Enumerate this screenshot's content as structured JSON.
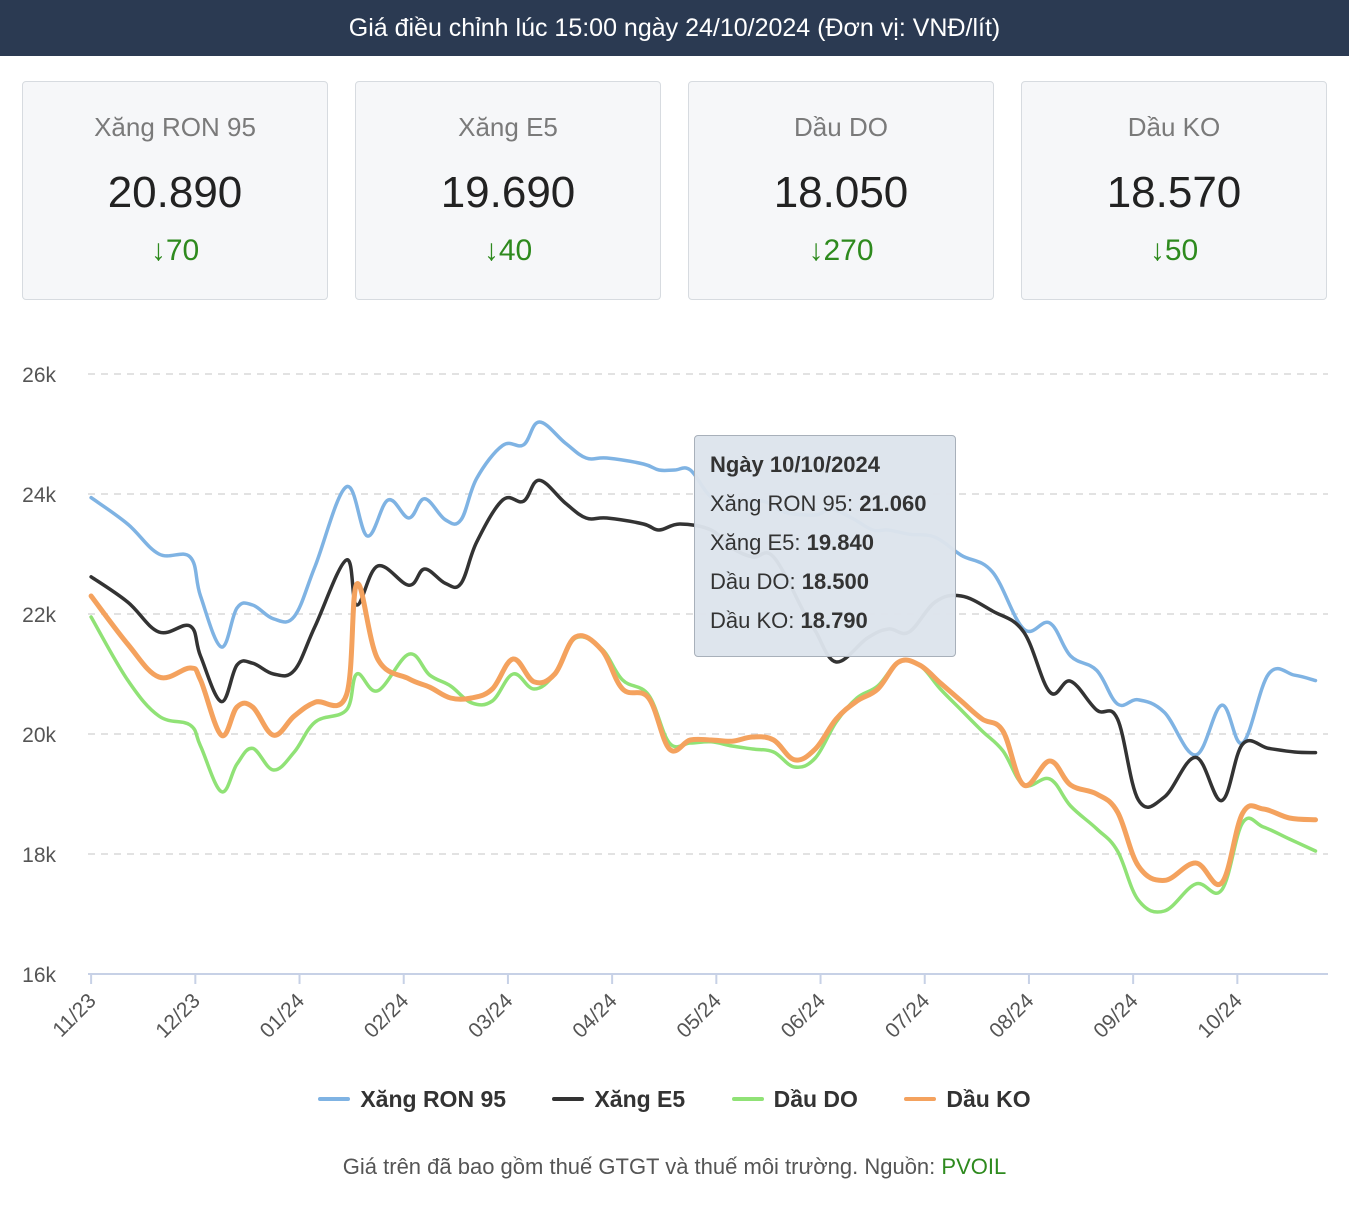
{
  "header": {
    "title": "Giá điều chỉnh lúc 15:00 ngày 24/10/2024 (Đơn vị: VNĐ/lít)"
  },
  "cards": [
    {
      "name": "Xăng RON 95",
      "price": "20.890",
      "change": "70",
      "arrow": "↓"
    },
    {
      "name": "Xăng E5",
      "price": "19.690",
      "change": "40",
      "arrow": "↓"
    },
    {
      "name": "Dầu DO",
      "price": "18.050",
      "change": "270",
      "arrow": "↓"
    },
    {
      "name": "Dầu KO",
      "price": "18.570",
      "change": "50",
      "arrow": "↓"
    }
  ],
  "colors": {
    "ron95": "#7fb3e3",
    "e5": "#333333",
    "do": "#90e276",
    "ko": "#f4a25e",
    "down": "#2e8a1e",
    "header_bg": "#2b3a52"
  },
  "tooltip": {
    "title": "Ngày 10/10/2024",
    "rows": [
      {
        "label": "Xăng RON 95: ",
        "value": "21.060"
      },
      {
        "label": "Xăng E5: ",
        "value": "19.840"
      },
      {
        "label": "Dầu DO: ",
        "value": "18.500"
      },
      {
        "label": "Dầu KO: ",
        "value": "18.790"
      }
    ]
  },
  "footer": {
    "text": "Giá trên đã bao gồm thuế GTGT và thuế môi trường. Nguồn: ",
    "source": "PVOIL"
  },
  "chart_data": {
    "type": "line",
    "ylim": [
      16000,
      26000
    ],
    "y_ticks": [
      16000,
      18000,
      20000,
      22000,
      24000,
      26000
    ],
    "y_tick_labels": [
      "16k",
      "18k",
      "20k",
      "22k",
      "24k",
      "26k"
    ],
    "x_tick_labels": [
      "11/23",
      "12/23",
      "01/24",
      "02/24",
      "03/24",
      "04/24",
      "05/24",
      "06/24",
      "07/24",
      "08/24",
      "09/24",
      "10/24"
    ],
    "x_tick_months": [
      0,
      1,
      2,
      3,
      4,
      5,
      6,
      7,
      8,
      9,
      10,
      11
    ],
    "xlim": [
      -0.03,
      11.87
    ],
    "grid": true,
    "legend_position": "bottom",
    "series": [
      {
        "name": "Xăng RON 95",
        "color": "#7fb3e3",
        "x": [
          0,
          0.35,
          0.65,
          0.95,
          1.05,
          1.25,
          1.4,
          1.55,
          1.75,
          1.95,
          2.15,
          2.45,
          2.65,
          2.85,
          3.05,
          3.2,
          3.4,
          3.55,
          3.7,
          3.95,
          4.15,
          4.3,
          4.55,
          4.75,
          4.95,
          5.3,
          5.45,
          5.6,
          5.75,
          5.95,
          6.15,
          6.45,
          6.65,
          6.95,
          7.1,
          7.3,
          7.5,
          7.65,
          7.85,
          8.1,
          8.35,
          8.65,
          8.95,
          9.2,
          9.4,
          9.65,
          9.85,
          10.05,
          10.3,
          10.6,
          10.85,
          11.05,
          11.3,
          11.55,
          11.75
        ],
        "values": [
          23940,
          23500,
          23000,
          22950,
          22300,
          21450,
          22100,
          22150,
          21920,
          21960,
          22800,
          24120,
          23300,
          23900,
          23600,
          23920,
          23570,
          23570,
          24260,
          24810,
          24820,
          25200,
          24850,
          24600,
          24600,
          24500,
          24400,
          24400,
          24400,
          23950,
          23880,
          23880,
          23700,
          23650,
          23750,
          23600,
          23400,
          23400,
          23330,
          23280,
          22980,
          22700,
          21750,
          21850,
          21300,
          21060,
          20500,
          20570,
          20360,
          19650,
          20480,
          19850,
          21000,
          20980,
          20890
        ]
      },
      {
        "name": "Xăng E5",
        "color": "#333333",
        "x": [
          0,
          0.35,
          0.65,
          0.95,
          1.05,
          1.25,
          1.4,
          1.55,
          1.75,
          1.95,
          2.15,
          2.45,
          2.55,
          2.75,
          3.05,
          3.2,
          3.4,
          3.55,
          3.7,
          3.95,
          4.15,
          4.3,
          4.55,
          4.75,
          4.95,
          5.3,
          5.45,
          5.65,
          5.95,
          6.15,
          6.35,
          6.55,
          6.85,
          6.95,
          7.15,
          7.45,
          7.65,
          7.85,
          8.1,
          8.35,
          8.65,
          8.95,
          9.2,
          9.4,
          9.65,
          9.85,
          10.05,
          10.3,
          10.6,
          10.85,
          11.05,
          11.3,
          11.55,
          11.75
        ],
        "values": [
          22620,
          22200,
          21700,
          21800,
          21300,
          20540,
          21150,
          21180,
          21000,
          21060,
          21800,
          22900,
          22150,
          22800,
          22480,
          22750,
          22510,
          22510,
          23200,
          23900,
          23880,
          24230,
          23850,
          23600,
          23600,
          23500,
          23400,
          23500,
          23400,
          23100,
          22950,
          22950,
          22000,
          21720,
          21200,
          21600,
          21750,
          21700,
          22200,
          22300,
          22050,
          21700,
          20700,
          20880,
          20400,
          20250,
          18900,
          18950,
          19610,
          18890,
          19830,
          19760,
          19700,
          19690
        ]
      },
      {
        "name": "Dầu DO",
        "color": "#90e276",
        "x": [
          0,
          0.35,
          0.65,
          0.95,
          1.05,
          1.25,
          1.4,
          1.55,
          1.75,
          1.95,
          2.15,
          2.45,
          2.55,
          2.75,
          3.05,
          3.25,
          3.45,
          3.65,
          3.85,
          4.05,
          4.25,
          4.45,
          4.65,
          4.9,
          5.1,
          5.35,
          5.55,
          5.75,
          5.95,
          6.15,
          6.35,
          6.55,
          6.75,
          6.95,
          7.15,
          7.35,
          7.55,
          7.75,
          7.95,
          8.15,
          8.35,
          8.55,
          8.75,
          8.95,
          9.2,
          9.4,
          9.65,
          9.85,
          10.05,
          10.3,
          10.6,
          10.85,
          11.05,
          11.25,
          11.5,
          11.75
        ],
        "values": [
          21950,
          20900,
          20300,
          20150,
          19800,
          19040,
          19500,
          19760,
          19400,
          19700,
          20200,
          20400,
          21000,
          20720,
          21330,
          20980,
          20800,
          20520,
          20550,
          21000,
          20750,
          21000,
          21600,
          21420,
          20900,
          20650,
          19850,
          19850,
          19870,
          19800,
          19750,
          19700,
          19450,
          19600,
          20200,
          20600,
          20800,
          21200,
          21150,
          20750,
          20400,
          20050,
          19720,
          19150,
          19250,
          18800,
          18420,
          18050,
          17230,
          17050,
          17500,
          17400,
          18520,
          18450,
          18250,
          18050
        ]
      },
      {
        "name": "Dầu KO",
        "color": "#f4a25e",
        "x": [
          0,
          0.35,
          0.65,
          0.95,
          1.05,
          1.25,
          1.4,
          1.55,
          1.75,
          1.95,
          2.15,
          2.45,
          2.55,
          2.75,
          3.05,
          3.25,
          3.45,
          3.65,
          3.85,
          4.05,
          4.25,
          4.45,
          4.65,
          4.9,
          5.1,
          5.35,
          5.55,
          5.75,
          5.95,
          6.15,
          6.35,
          6.55,
          6.75,
          6.95,
          7.15,
          7.35,
          7.55,
          7.75,
          7.95,
          8.15,
          8.35,
          8.55,
          8.75,
          8.95,
          9.2,
          9.4,
          9.65,
          9.85,
          10.05,
          10.3,
          10.6,
          10.85,
          11.05,
          11.25,
          11.5,
          11.75
        ],
        "values": [
          22300,
          21500,
          20950,
          21100,
          20900,
          19980,
          20450,
          20450,
          19980,
          20300,
          20530,
          20650,
          22500,
          21250,
          20920,
          20780,
          20600,
          20600,
          20750,
          21250,
          20870,
          21000,
          21620,
          21400,
          20750,
          20600,
          19750,
          19900,
          19900,
          19880,
          19950,
          19900,
          19570,
          19750,
          20250,
          20550,
          20750,
          21200,
          21150,
          20850,
          20550,
          20250,
          20050,
          19150,
          19550,
          19150,
          19000,
          18700,
          17800,
          17560,
          17850,
          17520,
          18680,
          18750,
          18600,
          18570
        ]
      }
    ]
  }
}
